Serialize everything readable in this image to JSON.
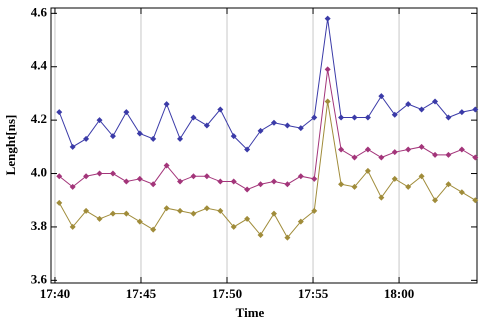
{
  "chart_data": {
    "type": "line",
    "x_label": "Time",
    "y_label": "Lenght[ns]",
    "x": [
      0.25,
      1.03,
      1.81,
      2.59,
      3.37,
      4.15,
      4.93,
      5.71,
      6.49,
      7.27,
      8.05,
      8.83,
      9.61,
      10.39,
      11.17,
      11.95,
      12.73,
      13.51,
      14.29,
      15.07,
      15.85,
      16.63,
      17.41,
      18.19,
      18.97,
      19.75,
      20.53,
      21.31,
      22.09,
      22.87,
      23.65,
      24.43
    ],
    "series": [
      {
        "color": "#3b3ba8",
        "values": [
          4.23,
          4.1,
          4.13,
          4.2,
          4.14,
          4.23,
          4.15,
          4.13,
          4.26,
          4.13,
          4.21,
          4.18,
          4.24,
          4.14,
          4.09,
          4.16,
          4.19,
          4.18,
          4.17,
          4.21,
          4.58,
          4.21,
          4.21,
          4.21,
          4.29,
          4.22,
          4.26,
          4.24,
          4.27,
          4.21,
          4.23,
          4.24
        ]
      },
      {
        "color": "#a3357a",
        "values": [
          3.99,
          3.95,
          3.99,
          4.0,
          4.0,
          3.97,
          3.98,
          3.96,
          4.03,
          3.97,
          3.99,
          3.99,
          3.97,
          3.97,
          3.94,
          3.96,
          3.97,
          3.96,
          3.99,
          3.98,
          4.39,
          4.09,
          4.06,
          4.09,
          4.06,
          4.08,
          4.09,
          4.1,
          4.07,
          4.07,
          4.09,
          4.06
        ]
      },
      {
        "color": "#a08c3a",
        "values": [
          3.89,
          3.8,
          3.86,
          3.83,
          3.85,
          3.85,
          3.82,
          3.79,
          3.87,
          3.86,
          3.85,
          3.87,
          3.86,
          3.8,
          3.83,
          3.77,
          3.85,
          3.76,
          3.82,
          3.86,
          4.27,
          3.96,
          3.95,
          4.01,
          3.91,
          3.98,
          3.95,
          3.99,
          3.9,
          3.96,
          3.93,
          3.9
        ]
      }
    ],
    "xlim": [
      -0.23,
      24.53
    ],
    "xticks": [
      {
        "value": 0,
        "label": "17:40"
      },
      {
        "value": 5,
        "label": "17:45"
      },
      {
        "value": 10,
        "label": "17:50"
      },
      {
        "value": 15,
        "label": "17:55"
      },
      {
        "value": 20,
        "label": "18:00"
      }
    ],
    "ylim": [
      3.59,
      4.62
    ],
    "yticks": [
      3.6,
      3.8,
      {
        "value": 4,
        "label": "4.0"
      },
      4.2,
      4.4,
      4.6
    ],
    "grid": "x"
  }
}
